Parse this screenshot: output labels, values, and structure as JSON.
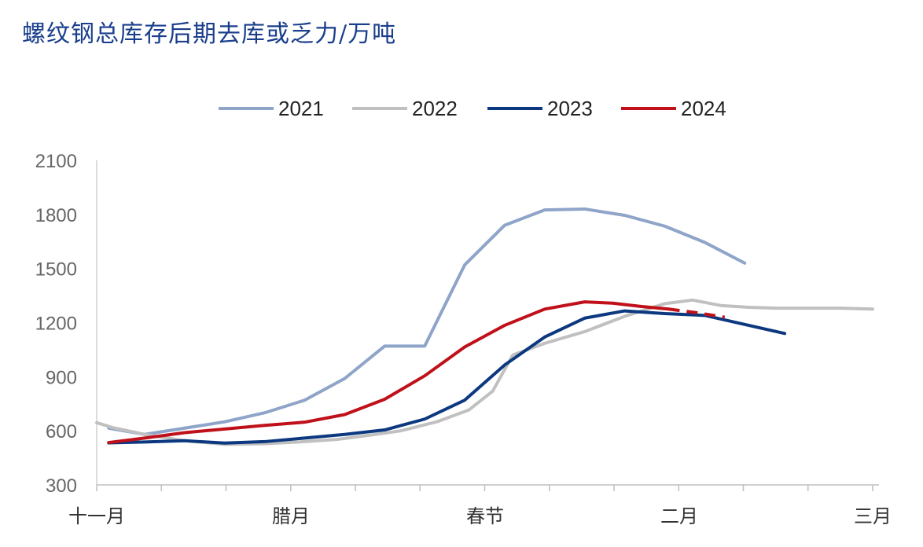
{
  "title": "螺纹钢总库存后期去库或乏力/万吨",
  "chart_data": {
    "type": "line",
    "title": "螺纹钢总库存后期去库或乏力/万吨",
    "x_tick_labels": [
      "十一月",
      "腊月",
      "春节",
      "二月",
      "三月"
    ],
    "ylim": [
      300,
      2100
    ],
    "y_ticks": [
      2100,
      1800,
      1500,
      1200,
      900,
      600,
      300
    ],
    "legend_position": "top-center",
    "grid": false,
    "series": [
      {
        "name": "2021",
        "color": "#8ea4c8",
        "dashed_from": null,
        "points": [
          [
            0.3,
            615
          ],
          [
            1.2,
            580
          ],
          [
            2.2,
            615
          ],
          [
            3.2,
            650
          ],
          [
            4.2,
            700
          ],
          [
            5.2,
            770
          ],
          [
            6.2,
            890
          ],
          [
            7.2,
            1070
          ],
          [
            8.2,
            1070
          ],
          [
            9.2,
            1520
          ],
          [
            10.2,
            1740
          ],
          [
            11.2,
            1825
          ],
          [
            12.2,
            1830
          ],
          [
            13.2,
            1795
          ],
          [
            14.2,
            1735
          ],
          [
            15.2,
            1645
          ],
          [
            16.2,
            1530
          ]
        ]
      },
      {
        "name": "2022",
        "color": "#c0c0c0",
        "dashed_from": null,
        "points": [
          [
            0,
            645
          ],
          [
            0.4,
            618
          ],
          [
            1.2,
            580
          ],
          [
            2.2,
            545
          ],
          [
            3.2,
            525
          ],
          [
            4.2,
            528
          ],
          [
            5.2,
            540
          ],
          [
            6.0,
            552
          ],
          [
            6.8,
            575
          ],
          [
            7.6,
            600
          ],
          [
            8.5,
            650
          ],
          [
            9.3,
            715
          ],
          [
            9.9,
            820
          ],
          [
            10.4,
            1020
          ],
          [
            11.2,
            1085
          ],
          [
            12.2,
            1150
          ],
          [
            13.2,
            1235
          ],
          [
            14.2,
            1305
          ],
          [
            14.9,
            1325
          ],
          [
            15.6,
            1295
          ],
          [
            16.3,
            1285
          ],
          [
            17.0,
            1280
          ],
          [
            17.8,
            1280
          ],
          [
            18.6,
            1280
          ],
          [
            19.4,
            1275
          ]
        ]
      },
      {
        "name": "2023",
        "color": "#0c3880",
        "dashed_from": null,
        "points": [
          [
            0.3,
            533
          ],
          [
            1.2,
            538
          ],
          [
            2.2,
            545
          ],
          [
            3.2,
            532
          ],
          [
            4.2,
            540
          ],
          [
            5.2,
            560
          ],
          [
            6.2,
            580
          ],
          [
            7.2,
            605
          ],
          [
            8.2,
            665
          ],
          [
            9.2,
            770
          ],
          [
            10.2,
            965
          ],
          [
            11.2,
            1120
          ],
          [
            12.2,
            1225
          ],
          [
            13.2,
            1265
          ],
          [
            14.2,
            1250
          ],
          [
            15.2,
            1240
          ],
          [
            16.2,
            1190
          ],
          [
            17.2,
            1140
          ]
        ]
      },
      {
        "name": "2024",
        "color": "#c0101a",
        "dashed_from": 14.7,
        "points": [
          [
            0.3,
            535
          ],
          [
            1.2,
            560
          ],
          [
            2.2,
            590
          ],
          [
            3.2,
            610
          ],
          [
            4.2,
            630
          ],
          [
            5.2,
            648
          ],
          [
            6.2,
            690
          ],
          [
            7.2,
            775
          ],
          [
            8.2,
            905
          ],
          [
            9.2,
            1065
          ],
          [
            10.2,
            1185
          ],
          [
            11.2,
            1275
          ],
          [
            12.2,
            1315
          ],
          [
            12.9,
            1308
          ],
          [
            13.6,
            1290
          ],
          [
            14.3,
            1275
          ],
          [
            15.0,
            1255
          ],
          [
            15.7,
            1230
          ]
        ]
      }
    ]
  }
}
